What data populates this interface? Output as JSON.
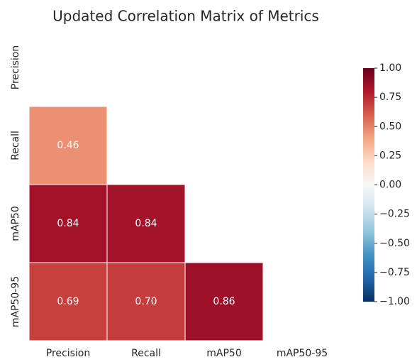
{
  "chart_data": {
    "type": "heatmap",
    "title": "Updated Correlation Matrix of Metrics",
    "x_categories": [
      "Precision",
      "Recall",
      "mAP50",
      "mAP50-95"
    ],
    "y_categories": [
      "Precision",
      "Recall",
      "mAP50",
      "mAP50-95"
    ],
    "values": [
      [
        null,
        null,
        null,
        null
      ],
      [
        0.46,
        null,
        null,
        null
      ],
      [
        0.84,
        0.84,
        null,
        null
      ],
      [
        0.69,
        0.7,
        0.86,
        null
      ]
    ],
    "value_labels": [
      [
        null,
        null,
        null,
        null
      ],
      [
        "0.46",
        null,
        null,
        null
      ],
      [
        "0.84",
        "0.84",
        null,
        null
      ],
      [
        "0.69",
        "0.70",
        "0.86",
        null
      ]
    ],
    "colormap": [
      "#053061",
      "#2166ac",
      "#4393c3",
      "#92c5de",
      "#d1e5f0",
      "#f7f7f7",
      "#fddbc7",
      "#f4a582",
      "#d6604d",
      "#b2182b",
      "#67001f"
    ],
    "clim": [
      -1,
      1
    ],
    "cticks": [
      {
        "value": 1,
        "label": "1.00"
      },
      {
        "value": 0.75,
        "label": "0.75"
      },
      {
        "value": 0.5,
        "label": "0.50"
      },
      {
        "value": 0.25,
        "label": "0.25"
      },
      {
        "value": 0,
        "label": "0.00"
      },
      {
        "value": -0.25,
        "label": "−0.25"
      },
      {
        "value": -0.5,
        "label": "−0.50"
      },
      {
        "value": -0.75,
        "label": "−0.75"
      },
      {
        "value": -1,
        "label": "−1.00"
      }
    ]
  }
}
